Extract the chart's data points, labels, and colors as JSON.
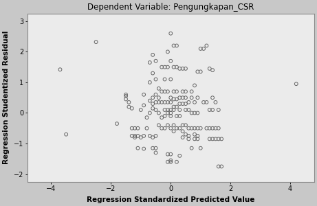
{
  "title": "Dependent Variable: Pengungkapan_CSR",
  "xlabel": "Regression Standardized Predicted Value",
  "ylabel": "Regression Studentized Residual",
  "xlim": [
    -4.8,
    4.8
  ],
  "ylim": [
    -2.25,
    3.25
  ],
  "xticks": [
    -4,
    -2,
    0,
    2,
    4
  ],
  "yticks": [
    -2,
    -1,
    0,
    1,
    2,
    3
  ],
  "fig_facecolor": "#c8c8c8",
  "plot_facecolor": "#ebebeb",
  "scatter_facecolor": "none",
  "scatter_edgecolor": "#666666",
  "scatter_size": 12,
  "scatter_linewidth": 0.7,
  "title_fontsize": 8.5,
  "label_fontsize": 7.5,
  "tick_fontsize": 7,
  "points": [
    [
      -3.7,
      1.42
    ],
    [
      -3.5,
      -0.7
    ],
    [
      -2.5,
      2.32
    ],
    [
      -1.8,
      -0.35
    ],
    [
      -1.5,
      0.6
    ],
    [
      -1.5,
      0.55
    ],
    [
      -1.5,
      0.45
    ],
    [
      -1.4,
      0.35
    ],
    [
      -1.4,
      0.2
    ],
    [
      -1.3,
      0.15
    ],
    [
      -1.3,
      -0.5
    ],
    [
      -1.3,
      -0.75
    ],
    [
      -1.2,
      -0.5
    ],
    [
      -1.2,
      -0.75
    ],
    [
      -1.2,
      -0.8
    ],
    [
      -1.1,
      -0.5
    ],
    [
      -1.1,
      -0.75
    ],
    [
      -1.1,
      -1.15
    ],
    [
      -1.0,
      0.1
    ],
    [
      -1.0,
      -0.8
    ],
    [
      -0.9,
      0.6
    ],
    [
      -0.9,
      0.25
    ],
    [
      -0.9,
      -0.75
    ],
    [
      -0.9,
      -1.17
    ],
    [
      -0.8,
      -0.15
    ],
    [
      -0.8,
      -0.5
    ],
    [
      -0.7,
      1.65
    ],
    [
      -0.7,
      1.0
    ],
    [
      -0.7,
      0.4
    ],
    [
      -0.7,
      0.0
    ],
    [
      -0.7,
      -0.75
    ],
    [
      -0.6,
      1.9
    ],
    [
      -0.6,
      1.3
    ],
    [
      -0.6,
      0.5
    ],
    [
      -0.6,
      0.3
    ],
    [
      -0.6,
      0.15
    ],
    [
      -0.6,
      -0.8
    ],
    [
      -0.6,
      -1.15
    ],
    [
      -0.5,
      1.7
    ],
    [
      -0.5,
      1.1
    ],
    [
      -0.5,
      0.6
    ],
    [
      -0.5,
      0.35
    ],
    [
      -0.5,
      0.1
    ],
    [
      -0.5,
      -0.75
    ],
    [
      -0.5,
      -1.15
    ],
    [
      -0.5,
      -1.3
    ],
    [
      -0.4,
      0.8
    ],
    [
      -0.4,
      0.5
    ],
    [
      -0.4,
      0.35
    ],
    [
      -0.4,
      0.0
    ],
    [
      -0.4,
      -0.4
    ],
    [
      -0.3,
      1.5
    ],
    [
      -0.3,
      0.7
    ],
    [
      -0.3,
      0.35
    ],
    [
      -0.3,
      -0.15
    ],
    [
      -0.3,
      -0.5
    ],
    [
      -0.2,
      1.5
    ],
    [
      -0.2,
      1.1
    ],
    [
      -0.2,
      0.7
    ],
    [
      -0.2,
      0.35
    ],
    [
      -0.2,
      0.1
    ],
    [
      -0.2,
      -0.1
    ],
    [
      -0.2,
      -0.5
    ],
    [
      -0.1,
      2.0
    ],
    [
      -0.1,
      1.5
    ],
    [
      -0.1,
      0.7
    ],
    [
      -0.1,
      0.35
    ],
    [
      -0.1,
      0.1
    ],
    [
      -0.1,
      0.0
    ],
    [
      -0.1,
      -0.4
    ],
    [
      -0.1,
      -1.35
    ],
    [
      -0.1,
      -1.6
    ],
    [
      0.0,
      2.6
    ],
    [
      0.0,
      1.7
    ],
    [
      0.0,
      1.1
    ],
    [
      0.0,
      0.5
    ],
    [
      0.0,
      0.35
    ],
    [
      0.0,
      0.1
    ],
    [
      0.0,
      0.0
    ],
    [
      0.0,
      -0.1
    ],
    [
      0.0,
      -0.5
    ],
    [
      0.0,
      -1.35
    ],
    [
      0.0,
      -1.55
    ],
    [
      0.0,
      -1.6
    ],
    [
      0.1,
      2.2
    ],
    [
      0.1,
      1.5
    ],
    [
      0.1,
      0.7
    ],
    [
      0.1,
      0.45
    ],
    [
      0.1,
      0.2
    ],
    [
      0.1,
      0.1
    ],
    [
      0.1,
      -0.4
    ],
    [
      0.1,
      -0.6
    ],
    [
      0.2,
      2.2
    ],
    [
      0.2,
      1.5
    ],
    [
      0.2,
      0.7
    ],
    [
      0.2,
      0.45
    ],
    [
      0.2,
      0.2
    ],
    [
      0.2,
      -0.1
    ],
    [
      0.2,
      -0.5
    ],
    [
      0.2,
      -1.6
    ],
    [
      0.3,
      1.45
    ],
    [
      0.3,
      0.5
    ],
    [
      0.3,
      0.3
    ],
    [
      0.3,
      0.1
    ],
    [
      0.3,
      -0.1
    ],
    [
      0.3,
      -0.5
    ],
    [
      0.3,
      -1.4
    ],
    [
      0.4,
      1.45
    ],
    [
      0.4,
      0.7
    ],
    [
      0.4,
      0.5
    ],
    [
      0.4,
      0.3
    ],
    [
      0.4,
      -0.4
    ],
    [
      0.4,
      -0.6
    ],
    [
      0.4,
      -0.8
    ],
    [
      0.5,
      1.45
    ],
    [
      0.5,
      0.7
    ],
    [
      0.5,
      0.5
    ],
    [
      0.5,
      0.3
    ],
    [
      0.5,
      0.1
    ],
    [
      0.5,
      -0.4
    ],
    [
      0.5,
      -0.7
    ],
    [
      0.6,
      0.35
    ],
    [
      0.6,
      0.1
    ],
    [
      0.6,
      -0.5
    ],
    [
      0.6,
      -0.75
    ],
    [
      0.6,
      -0.85
    ],
    [
      0.7,
      0.7
    ],
    [
      0.7,
      0.5
    ],
    [
      0.7,
      0.0
    ],
    [
      0.7,
      -0.5
    ],
    [
      0.7,
      -1.15
    ],
    [
      0.8,
      0.9
    ],
    [
      0.8,
      0.35
    ],
    [
      0.8,
      0.0
    ],
    [
      0.8,
      -0.5
    ],
    [
      0.8,
      -0.7
    ],
    [
      0.8,
      -0.85
    ],
    [
      0.9,
      1.35
    ],
    [
      0.9,
      0.5
    ],
    [
      0.9,
      0.0
    ],
    [
      0.9,
      -0.5
    ],
    [
      0.9,
      -0.75
    ],
    [
      0.9,
      -0.85
    ],
    [
      1.0,
      2.1
    ],
    [
      1.0,
      1.35
    ],
    [
      1.0,
      -0.5
    ],
    [
      1.0,
      -1.15
    ],
    [
      1.1,
      2.1
    ],
    [
      1.1,
      0.35
    ],
    [
      1.2,
      2.2
    ],
    [
      1.2,
      0.35
    ],
    [
      1.2,
      -0.5
    ],
    [
      1.3,
      1.45
    ],
    [
      1.3,
      0.1
    ],
    [
      1.3,
      -0.5
    ],
    [
      1.3,
      -0.85
    ],
    [
      1.4,
      1.4
    ],
    [
      1.4,
      0.5
    ],
    [
      1.4,
      0.1
    ],
    [
      1.4,
      -0.5
    ],
    [
      1.4,
      -0.85
    ],
    [
      1.5,
      0.35
    ],
    [
      1.5,
      -0.5
    ],
    [
      1.5,
      -0.85
    ],
    [
      1.6,
      0.1
    ],
    [
      1.6,
      -0.5
    ],
    [
      1.6,
      -0.85
    ],
    [
      1.6,
      -1.75
    ],
    [
      1.7,
      -0.85
    ],
    [
      1.7,
      -1.75
    ],
    [
      4.2,
      0.95
    ]
  ]
}
